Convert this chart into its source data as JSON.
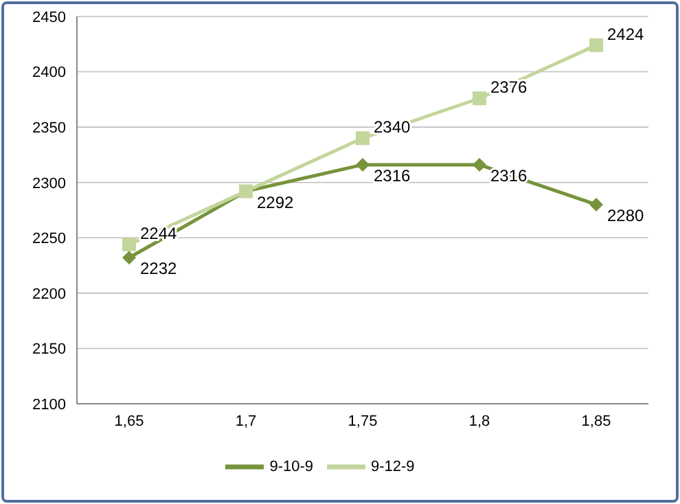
{
  "chart_data": {
    "type": "line",
    "categories": [
      "1,65",
      "1,7",
      "1,75",
      "1,8",
      "1,85"
    ],
    "series": [
      {
        "name": "9-10-9",
        "color": "#77933c",
        "marker": "diamond",
        "values": [
          2232,
          2292,
          2316,
          2316,
          2280
        ],
        "value_labels": [
          "2232",
          "2292",
          "2316",
          "2316",
          "2280"
        ]
      },
      {
        "name": "9-12-9",
        "color": "#c3d69b",
        "marker": "square",
        "values": [
          2244,
          2292,
          2340,
          2376,
          2424
        ],
        "value_labels": [
          "2244",
          null,
          "2340",
          "2376",
          "2424"
        ]
      }
    ],
    "ylim": [
      2100,
      2450
    ],
    "yticks": [
      2100,
      2150,
      2200,
      2250,
      2300,
      2350,
      2400,
      2450
    ],
    "grid": "y",
    "legend": "bottom"
  }
}
